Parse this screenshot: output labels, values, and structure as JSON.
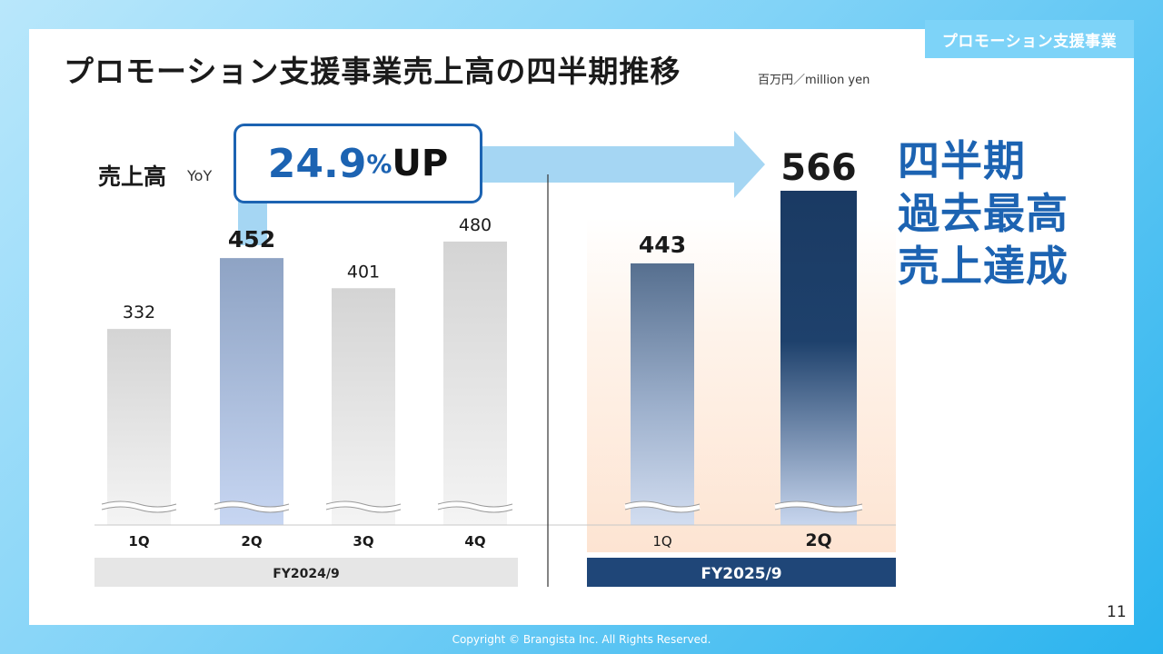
{
  "header": {
    "section_tab": "プロモーション支援事業",
    "title": "プロモーション支援事業売上高の四半期推移",
    "unit": "百万円／million yen"
  },
  "yoy": {
    "label": "売上高",
    "sub": "YoY",
    "value": "24.9",
    "percent": "%",
    "suffix": "UP"
  },
  "highlight": {
    "line1": "四半期",
    "line2": "過去最高",
    "line3": "売上達成"
  },
  "chart_data": {
    "type": "bar",
    "ylim": [
      0,
      566
    ],
    "groups": [
      {
        "name": "FY2024/9",
        "categories": [
          "1Q",
          "2Q",
          "3Q",
          "4Q"
        ],
        "values": [
          332,
          452,
          401,
          480
        ]
      },
      {
        "name": "FY2025/9",
        "categories": [
          "1Q",
          "2Q"
        ],
        "values": [
          443,
          566
        ]
      }
    ],
    "colors": {
      "fy2024_gray": "#d6d6d6",
      "fy2024_highlight": "#8ea3c4",
      "fy2025_mid": "#566f8f",
      "fy2025_dark": "#1a3a63",
      "fy2025_band": "#fde9d9",
      "arrow": "#a5d6f3"
    }
  },
  "footer": {
    "page": "11",
    "copyright": "Copyright © Brangista Inc. All Rights Reserved."
  }
}
